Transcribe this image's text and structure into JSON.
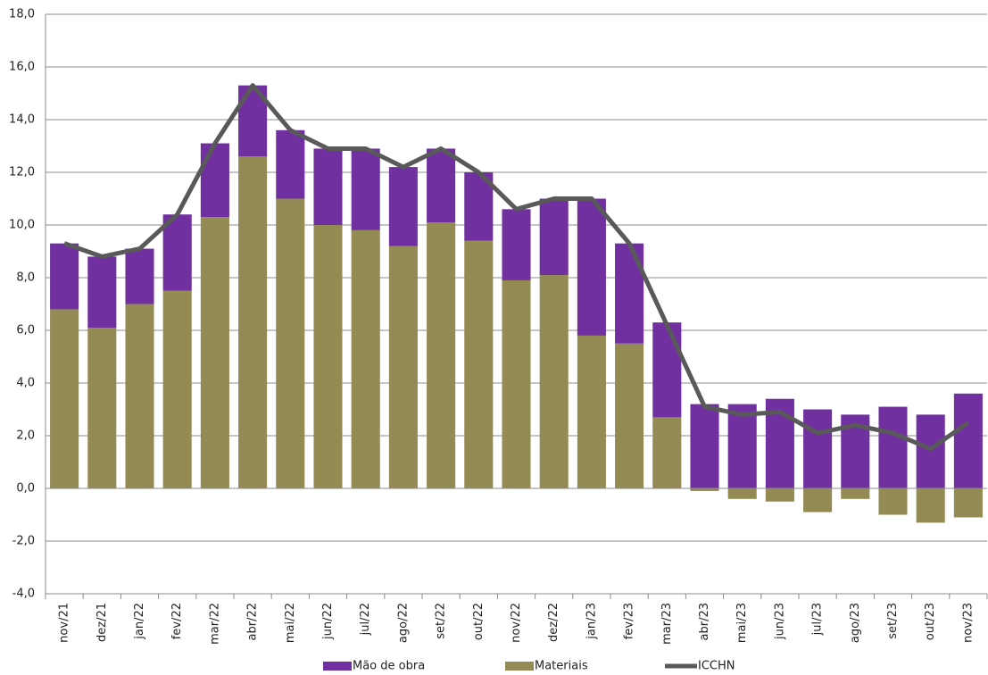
{
  "chart_data": {
    "type": "stacked-bar-line",
    "categories": [
      "nov/21",
      "dez/21",
      "jan/22",
      "fev/22",
      "mar/22",
      "abr/22",
      "mai/22",
      "jun/22",
      "jul/22",
      "ago/22",
      "set/22",
      "out/22",
      "nov/22",
      "dez/22",
      "jan/23",
      "fev/23",
      "mar/23",
      "abr/23",
      "mai/23",
      "jun/23",
      "jul/23",
      "ago/23",
      "set/23",
      "out/23",
      "nov/23"
    ],
    "series": [
      {
        "name": "Mão de obra",
        "kind": "bar",
        "color": "#7030a0",
        "values": [
          2.5,
          2.7,
          2.1,
          2.9,
          2.8,
          2.7,
          2.6,
          2.9,
          3.1,
          3.0,
          2.8,
          2.6,
          2.7,
          2.9,
          5.2,
          3.8,
          3.6,
          3.2,
          3.2,
          3.4,
          3.0,
          2.8,
          3.1,
          2.8,
          3.6
        ]
      },
      {
        "name": "Materiais",
        "kind": "bar",
        "color": "#948a54",
        "values": [
          6.8,
          6.1,
          7.0,
          7.5,
          10.3,
          12.6,
          11.0,
          10.0,
          9.8,
          9.2,
          10.1,
          9.4,
          7.9,
          8.1,
          5.8,
          5.5,
          2.7,
          -0.1,
          -0.4,
          -0.5,
          -0.9,
          -0.4,
          -1.0,
          -1.3,
          -1.1
        ]
      },
      {
        "name": "ICCHN",
        "kind": "line",
        "color": "#595959",
        "values": [
          9.3,
          8.8,
          9.1,
          10.4,
          13.1,
          15.3,
          13.6,
          12.9,
          12.9,
          12.2,
          12.9,
          12.0,
          10.6,
          11.0,
          11.0,
          9.3,
          6.2,
          3.1,
          2.8,
          2.9,
          2.1,
          2.4,
          2.1,
          1.5,
          2.5
        ]
      }
    ],
    "ylim": [
      -4,
      18
    ],
    "yticks": [
      {
        "value": -4,
        "label": "-4,0"
      },
      {
        "value": -2,
        "label": "-2,0"
      },
      {
        "value": 0,
        "label": "0,0"
      },
      {
        "value": 2,
        "label": "2,0"
      },
      {
        "value": 4,
        "label": "4,0"
      },
      {
        "value": 6,
        "label": "6,0"
      },
      {
        "value": 8,
        "label": "8,0"
      },
      {
        "value": 10,
        "label": "10,0"
      },
      {
        "value": 12,
        "label": "12,0"
      },
      {
        "value": 14,
        "label": "14,0"
      },
      {
        "value": 16,
        "label": "16,0"
      },
      {
        "value": 18,
        "label": "18,0"
      }
    ],
    "grid": true
  }
}
